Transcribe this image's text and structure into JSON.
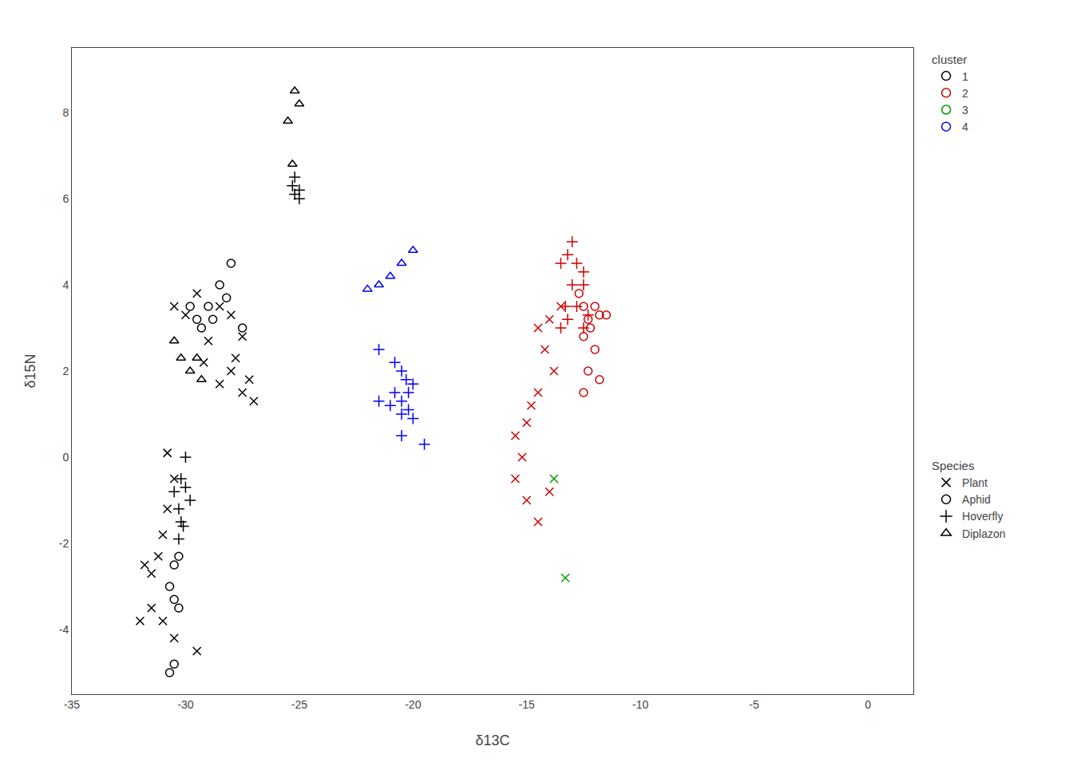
{
  "chart_data": {
    "type": "scatter",
    "xlabel": "δ13C",
    "ylabel": "δ15N",
    "xlim": [
      -35,
      2
    ],
    "ylim": [
      -5.5,
      9.5
    ],
    "xticks": [
      -35,
      -30,
      -25,
      -20,
      -15,
      -10,
      -5,
      0
    ],
    "yticks": [
      -4,
      -2,
      0,
      2,
      4,
      6,
      8
    ],
    "grid": false,
    "series": [
      {
        "cluster": "1",
        "species": "Plant",
        "color": "#000000",
        "marker": "x",
        "x": [
          -30.5,
          -30.0,
          -29.5,
          -28.5,
          -28.0,
          -27.5,
          -27.8,
          -29.0,
          -29.2,
          -28.5,
          -28.0,
          -27.5,
          -27.2,
          -27.0,
          -30.8,
          -30.5,
          -30.8,
          -31.0,
          -31.2,
          -31.5,
          -31.8,
          -31.5,
          -31.0,
          -30.5,
          -32.0,
          -29.5
        ],
        "values": [
          3.5,
          3.3,
          3.8,
          3.5,
          3.3,
          2.8,
          2.3,
          2.7,
          2.2,
          1.7,
          2.0,
          1.5,
          1.8,
          1.3,
          0.1,
          -0.5,
          -1.2,
          -1.8,
          -2.3,
          -2.7,
          -2.5,
          -3.5,
          -3.8,
          -4.2,
          -3.8,
          -4.5
        ]
      },
      {
        "cluster": "1",
        "species": "Aphid",
        "color": "#000000",
        "marker": "circle",
        "x": [
          -29.8,
          -29.5,
          -29.3,
          -29.0,
          -28.8,
          -28.5,
          -28.2,
          -28.0,
          -27.5,
          -30.3,
          -30.5,
          -30.7,
          -30.5,
          -30.3,
          -30.5,
          -30.7
        ],
        "values": [
          3.5,
          3.2,
          3.0,
          3.5,
          3.2,
          4.0,
          3.7,
          4.5,
          3.0,
          -2.3,
          -2.5,
          -3.0,
          -3.3,
          -3.5,
          -4.8,
          -5.0
        ]
      },
      {
        "cluster": "1",
        "species": "Hoverfly",
        "color": "#000000",
        "marker": "plus",
        "x": [
          -30.2,
          -30.3,
          -30.5,
          -30.2,
          -30.0,
          -29.8,
          -30.1,
          -30.3,
          -30.0,
          -25.0,
          -25.2,
          -25.3,
          -25.0,
          -25.2
        ],
        "values": [
          -1.5,
          -1.2,
          -0.8,
          -0.5,
          -0.7,
          -1.0,
          -1.6,
          -1.9,
          0.0,
          6.2,
          6.5,
          6.3,
          6.0,
          6.1
        ]
      },
      {
        "cluster": "1",
        "species": "Diplazon",
        "color": "#000000",
        "marker": "triangle",
        "x": [
          -25.2,
          -25.0,
          -25.5,
          -25.3,
          -30.5,
          -30.2,
          -29.8,
          -29.5,
          -29.3
        ],
        "values": [
          8.5,
          8.2,
          7.8,
          6.8,
          2.7,
          2.3,
          2.0,
          2.3,
          1.8
        ]
      },
      {
        "cluster": "2",
        "species": "Hoverfly",
        "color": "#cc0000",
        "marker": "plus",
        "x": [
          -13.0,
          -13.2,
          -12.8,
          -12.5,
          -13.5,
          -13.0,
          -12.5,
          -12.8,
          -13.2,
          -12.3,
          -12.5,
          -13.3,
          -13.5
        ],
        "values": [
          5.0,
          4.7,
          4.5,
          4.3,
          4.5,
          4.0,
          4.0,
          3.5,
          3.2,
          3.3,
          3.0,
          3.5,
          3.0
        ]
      },
      {
        "cluster": "2",
        "species": "Aphid",
        "color": "#cc0000",
        "marker": "circle",
        "x": [
          -12.7,
          -12.5,
          -12.3,
          -12.0,
          -11.8,
          -12.2,
          -11.5,
          -12.5,
          -12.0,
          -12.3,
          -11.8,
          -12.5
        ],
        "values": [
          3.8,
          3.5,
          3.2,
          3.5,
          3.3,
          3.0,
          3.3,
          2.8,
          2.5,
          2.0,
          1.8,
          1.5
        ]
      },
      {
        "cluster": "2",
        "species": "Plant",
        "color": "#cc0000",
        "marker": "x",
        "x": [
          -13.5,
          -14.0,
          -14.5,
          -14.2,
          -13.8,
          -14.5,
          -14.8,
          -15.0,
          -15.5,
          -15.2,
          -15.5,
          -15.0,
          -14.5,
          -14.0
        ],
        "values": [
          3.5,
          3.2,
          3.0,
          2.5,
          2.0,
          1.5,
          1.2,
          0.8,
          0.5,
          0.0,
          -0.5,
          -1.0,
          -1.5,
          -0.8
        ]
      },
      {
        "cluster": "3",
        "species": "Plant",
        "color": "#009900",
        "marker": "x",
        "x": [
          -13.8,
          -13.3
        ],
        "values": [
          -0.5,
          -2.8
        ]
      },
      {
        "cluster": "4",
        "species": "Diplazon",
        "color": "#0000ee",
        "marker": "triangle",
        "x": [
          -20.0,
          -20.5,
          -21.0,
          -21.5,
          -22.0
        ],
        "values": [
          4.8,
          4.5,
          4.2,
          4.0,
          3.9
        ]
      },
      {
        "cluster": "4",
        "species": "Hoverfly",
        "color": "#0000ee",
        "marker": "plus",
        "x": [
          -20.8,
          -20.5,
          -20.3,
          -20.2,
          -20.0,
          -20.5,
          -20.8,
          -21.0,
          -20.5,
          -20.2,
          -20.0,
          -21.5,
          -20.5,
          -21.5,
          -19.5
        ],
        "values": [
          2.2,
          2.0,
          1.8,
          1.5,
          1.7,
          1.3,
          1.5,
          1.2,
          1.0,
          1.1,
          0.9,
          1.3,
          0.5,
          2.5,
          0.3
        ]
      }
    ],
    "legends": [
      {
        "title": "cluster",
        "entries": [
          {
            "name": "1",
            "color": "#000000",
            "marker": "circle"
          },
          {
            "name": "2",
            "color": "#cc0000",
            "marker": "circle"
          },
          {
            "name": "3",
            "color": "#009900",
            "marker": "circle"
          },
          {
            "name": "4",
            "color": "#0000ee",
            "marker": "circle"
          }
        ]
      },
      {
        "title": "Species",
        "entries": [
          {
            "name": "Plant",
            "color": "#000000",
            "marker": "x"
          },
          {
            "name": "Aphid",
            "color": "#000000",
            "marker": "circle"
          },
          {
            "name": "Hoverfly",
            "color": "#000000",
            "marker": "plus"
          },
          {
            "name": "Diplazon",
            "color": "#000000",
            "marker": "triangle"
          }
        ]
      }
    ]
  }
}
